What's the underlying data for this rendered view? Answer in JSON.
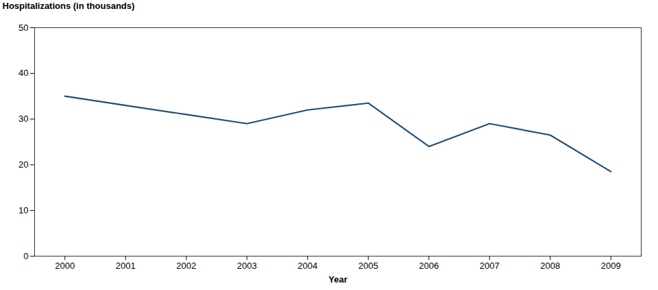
{
  "chart_data": {
    "type": "line",
    "x": [
      2000,
      2001,
      2002,
      2003,
      2004,
      2005,
      2006,
      2007,
      2008,
      2009
    ],
    "values": [
      35.0,
      33.0,
      31.0,
      29.0,
      32.0,
      33.5,
      24.0,
      29.0,
      26.5,
      18.5
    ],
    "color": "#1f4e79",
    "xlabel": "Year",
    "ylabel": "Hospitalizations (in thousands)",
    "xlim": [
      1999.5,
      2009.5
    ],
    "xticks": [
      2000,
      2001,
      2002,
      2003,
      2004,
      2005,
      2006,
      2007,
      2008,
      2009
    ],
    "ylim": [
      0,
      50
    ],
    "yticks": [
      0,
      10,
      20,
      30,
      40,
      50
    ],
    "grid": false
  }
}
